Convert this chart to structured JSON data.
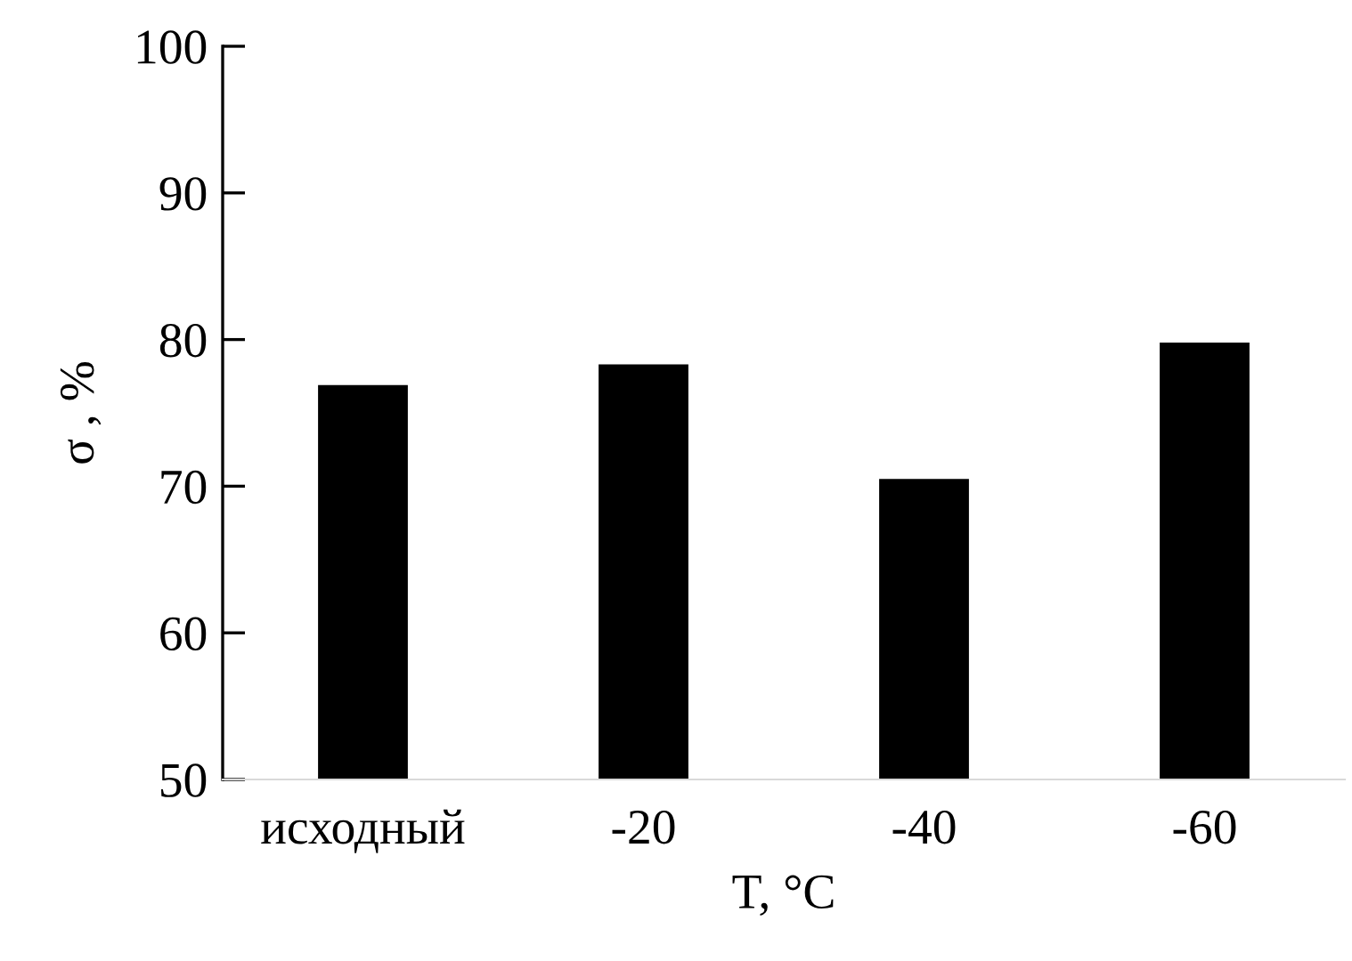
{
  "chart_data": {
    "type": "bar",
    "xlabel": "T, °C",
    "ylabel": "σ , %",
    "categories": [
      "исходный",
      "-20",
      "-40",
      "-60"
    ],
    "values": [
      76.9,
      78.3,
      70.5,
      79.8
    ],
    "color": "#000000",
    "ylim": [
      50,
      100
    ],
    "yticks": [
      50,
      60,
      70,
      80,
      90,
      100
    ],
    "grid": false,
    "legend": false
  }
}
